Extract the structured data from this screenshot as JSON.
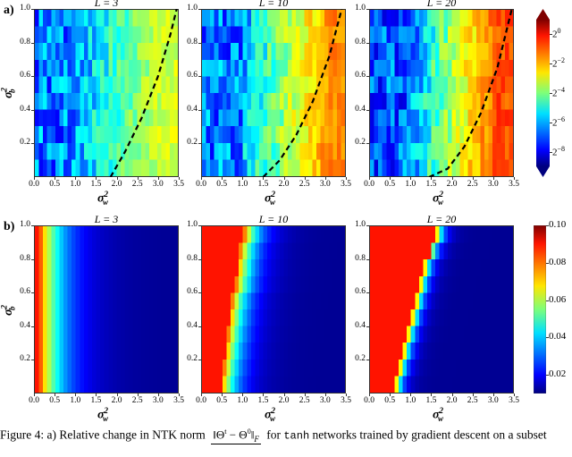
{
  "figure": {
    "row_a_label": "a)",
    "row_b_label": "b)",
    "xlabel": "σ",
    "xlabel_sub": "w",
    "xlabel_sup": "2",
    "ylabel": "σ",
    "ylabel_sub": "b",
    "ylabel_sup": "2",
    "xticks": [
      "0.0",
      "0.5",
      "1.0",
      "1.5",
      "2.0",
      "2.5",
      "3.0",
      "3.5"
    ],
    "yticks": [
      "0.2",
      "0.4",
      "0.6",
      "0.8",
      "1.0"
    ],
    "colorbar_a": {
      "scale": "log2",
      "extend": "both",
      "ticks": [
        {
          "base": "2",
          "exp": "0"
        },
        {
          "base": "2",
          "exp": "−2"
        },
        {
          "base": "2",
          "exp": "−4"
        },
        {
          "base": "2",
          "exp": "−6"
        },
        {
          "base": "2",
          "exp": "−8"
        }
      ]
    },
    "colorbar_b": {
      "ticks": [
        "0.10",
        "0.08",
        "0.06",
        "0.04",
        "0.02"
      ]
    }
  },
  "caption": {
    "prefix": "Figure 4:  a) Relative change in NTK norm",
    "numerator": "‖Θ",
    "numerator_sup_t": "t",
    "numerator_mid": " − Θ",
    "numerator_sup_0": "0",
    "numerator_end": "‖",
    "numerator_sub": "F",
    "suffix_pre": "for",
    "code": "tanh",
    "suffix_post": "networks trained by gradient descent on a subset"
  },
  "chart_data": [
    {
      "type": "heatmap",
      "panel": "a",
      "title": "L = 3",
      "xlabel": "σ_w^2",
      "ylabel": "σ_b^2",
      "xlim": [
        0.0,
        3.5
      ],
      "ylim": [
        0.0,
        1.0
      ],
      "colorscale": "jet",
      "color_scale_type": "log2",
      "crange_log2": [
        -9,
        1
      ],
      "grid_cols": 35,
      "grid_rows": 10,
      "description": "Noisy log2 relative NTK change; low (~2^-7, dark blue) for σ_w^2 < 1.3, rising to ~2^-3 (yellow-green) at σ_w^2 ≈ 3.5",
      "low_region_log2": -6.5,
      "high_region_log2": -3.2,
      "dashed_curve": {
        "x": [
          1.85,
          2.2,
          2.6,
          3.0,
          3.3,
          3.45
        ],
        "y": [
          0.0,
          0.15,
          0.35,
          0.6,
          0.85,
          1.0
        ]
      }
    },
    {
      "type": "heatmap",
      "panel": "a",
      "title": "L = 10",
      "xlabel": "σ_w^2",
      "ylabel": "σ_b^2",
      "xlim": [
        0.0,
        3.5
      ],
      "ylim": [
        0.0,
        1.0
      ],
      "colorscale": "jet",
      "color_scale_type": "log2",
      "crange_log2": [
        -9,
        1
      ],
      "grid_cols": 35,
      "grid_rows": 10,
      "description": "Blue (~2^-7) for σ_w^2 < 1.2, transitions to orange (~2^-1.5) for σ_w^2 > 2.5",
      "low_region_log2": -6.5,
      "high_region_log2": -1.6,
      "dashed_curve": {
        "x": [
          1.5,
          1.9,
          2.3,
          2.7,
          3.1,
          3.4
        ],
        "y": [
          0.0,
          0.1,
          0.25,
          0.45,
          0.72,
          1.0
        ]
      }
    },
    {
      "type": "heatmap",
      "panel": "a",
      "title": "L = 20",
      "xlabel": "σ_w^2",
      "ylabel": "σ_b^2",
      "xlim": [
        0.0,
        3.5
      ],
      "ylim": [
        0.0,
        1.0
      ],
      "colorscale": "jet",
      "color_scale_type": "log2",
      "crange_log2": [
        -9,
        1
      ],
      "grid_cols": 35,
      "grid_rows": 10,
      "description": "Blue (~2^-7) for σ_w^2 < 1.2, transitions to red-orange (~2^-1) for σ_w^2 > 2.5",
      "low_region_log2": -6.8,
      "high_region_log2": -1.0,
      "dashed_curve": {
        "x": [
          1.45,
          1.9,
          2.3,
          2.7,
          3.1,
          3.45
        ],
        "y": [
          0.0,
          0.05,
          0.18,
          0.38,
          0.65,
          1.0
        ]
      }
    },
    {
      "type": "heatmap",
      "panel": "b",
      "title": "L = 3",
      "xlabel": "σ_w^2",
      "ylabel": "σ_b^2",
      "xlim": [
        0.0,
        3.5
      ],
      "ylim": [
        0.0,
        1.0
      ],
      "colorscale": "jet",
      "crange": [
        0.01,
        0.1
      ],
      "grid_cols": 35,
      "grid_rows": 10,
      "description": "Red (~0.09) at σ_w^2 ≈ 0.0–0.1, quick falloff through yellow/cyan by 0.4, blue by 1.0, dark navy (~0.01) beyond 1.5",
      "boundary_sigma_w2": [
        0.1,
        0.1,
        0.1,
        0.1,
        0.1,
        0.1,
        0.1,
        0.1,
        0.1,
        0.1
      ],
      "transition_width": 1.2
    },
    {
      "type": "heatmap",
      "panel": "b",
      "title": "L = 10",
      "xlabel": "σ_w^2",
      "ylabel": "σ_b^2",
      "xlim": [
        0.0,
        3.5
      ],
      "ylim": [
        0.0,
        1.0
      ],
      "colorscale": "jet",
      "crange": [
        0.01,
        0.1
      ],
      "grid_cols": 35,
      "grid_rows": 10,
      "description": "Red (~0.09) left of a boundary moving from σ_w^2 ≈ 0.45 (σ_b^2=0) to ≈ 1.0 (σ_b^2=1), dark navy (~0.01) to the right",
      "boundary_sigma_w2": [
        0.45,
        0.5,
        0.55,
        0.6,
        0.65,
        0.7,
        0.8,
        0.85,
        0.9,
        1.0
      ],
      "transition_width": 0.8
    },
    {
      "type": "heatmap",
      "panel": "b",
      "title": "L = 20",
      "xlabel": "σ_w^2",
      "ylabel": "σ_b^2",
      "xlim": [
        0.0,
        3.5
      ],
      "ylim": [
        0.0,
        1.0
      ],
      "colorscale": "jet",
      "crange": [
        0.01,
        0.1
      ],
      "grid_cols": 35,
      "grid_rows": 10,
      "description": "Red (~0.09) left of a sharp boundary moving from σ_w^2 ≈ 0.6 (σ_b^2=0) to ≈ 1.6 (σ_b^2=1), dark navy (~0.01) to the right",
      "boundary_sigma_w2": [
        0.6,
        0.7,
        0.8,
        0.9,
        1.0,
        1.1,
        1.2,
        1.3,
        1.45,
        1.6
      ],
      "transition_width": 0.35
    }
  ]
}
